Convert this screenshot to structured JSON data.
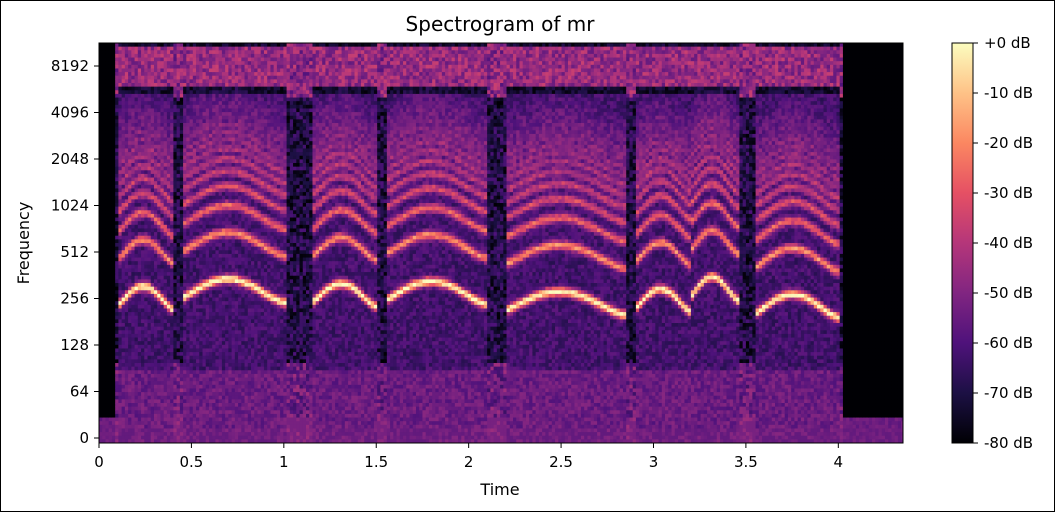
{
  "chart_data": {
    "type": "heatmap",
    "title": "Spectrogram of mr",
    "xlabel": "Time",
    "ylabel": "Frequency",
    "xlim": [
      0,
      4.35
    ],
    "x_ticks": [
      "0",
      "0.5",
      "1",
      "1.5",
      "2",
      "2.5",
      "3",
      "3.5",
      "4"
    ],
    "y_scale": "log2",
    "y_ticks": [
      "0",
      "64",
      "128",
      "256",
      "512",
      "1024",
      "2048",
      "4096",
      "8192"
    ],
    "colorbar": {
      "label_unit": "dB",
      "range": [
        -80,
        0
      ],
      "ticks": [
        "+0 dB",
        "-10 dB",
        "-20 dB",
        "-30 dB",
        "-40 dB",
        "-50 dB",
        "-60 dB",
        "-70 dB",
        "-80 dB"
      ],
      "colormap": "magma"
    },
    "voiced_segments": [
      {
        "start": 0.1,
        "end": 0.4,
        "f0": 260
      },
      {
        "start": 0.45,
        "end": 1.0,
        "f0": 290
      },
      {
        "start": 1.15,
        "end": 1.5,
        "f0": 270
      },
      {
        "start": 1.55,
        "end": 2.1,
        "f0": 280
      },
      {
        "start": 2.2,
        "end": 2.85,
        "f0": 240
      },
      {
        "start": 2.9,
        "end": 3.2,
        "f0": 250
      },
      {
        "start": 3.2,
        "end": 3.45,
        "f0": 300
      },
      {
        "start": 3.55,
        "end": 4.0,
        "f0": 230
      }
    ],
    "colors": {
      "background": "#000004",
      "harmonic_peak": "#fcfdbf",
      "mid": "#b63679",
      "low": "#3b0f70"
    }
  }
}
